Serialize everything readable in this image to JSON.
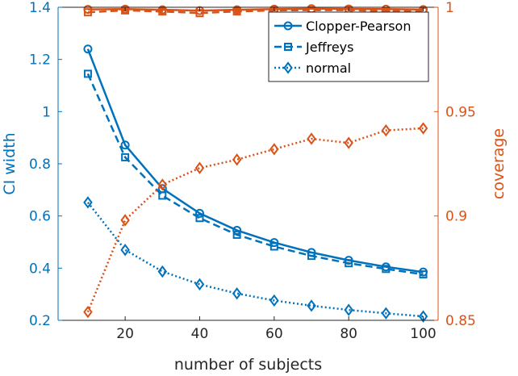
{
  "colors": {
    "left_axis": "#0072BD",
    "right_axis": "#D95319",
    "frame": "#262626",
    "background": "#ffffff"
  },
  "chart_data": {
    "type": "line",
    "xlabel": "number of subjects",
    "ylabel_left": "CI width",
    "ylabel_right": "coverage",
    "xlim": [
      2,
      104
    ],
    "ylim_left": [
      0.2,
      1.4
    ],
    "ylim_right": [
      0.85,
      1.0
    ],
    "x_ticks": [
      20,
      40,
      60,
      80,
      100
    ],
    "y_left_ticks": [
      0.2,
      0.4,
      0.6,
      0.8,
      1.0,
      1.2,
      1.4
    ],
    "y_left_tick_labels": [
      "0.2",
      "0.4",
      "0.6",
      "0.8",
      "1",
      "1.2",
      "1.4"
    ],
    "y_right_ticks": [
      0.85,
      0.9,
      0.95,
      1.0
    ],
    "y_right_tick_labels": [
      "0.85",
      "0.9",
      "0.95",
      "1"
    ],
    "grid": false,
    "legend_position": "top-right",
    "x": [
      10,
      20,
      30,
      40,
      50,
      60,
      70,
      80,
      90,
      100
    ],
    "series": [
      {
        "name": "Clopper-Pearson",
        "axis": "left",
        "line": "solid",
        "marker": "circle",
        "values": [
          1.24,
          0.872,
          0.705,
          0.61,
          0.545,
          0.498,
          0.46,
          0.43,
          0.405,
          0.385
        ]
      },
      {
        "name": "Jeffreys",
        "axis": "left",
        "line": "dashed",
        "marker": "square",
        "values": [
          1.145,
          0.825,
          0.678,
          0.592,
          0.528,
          0.483,
          0.447,
          0.419,
          0.397,
          0.376
        ]
      },
      {
        "name": "normal",
        "axis": "left",
        "line": "dotted",
        "marker": "diamond",
        "values": [
          0.652,
          0.47,
          0.387,
          0.338,
          0.303,
          0.276,
          0.256,
          0.24,
          0.227,
          0.215
        ]
      },
      {
        "axis": "right",
        "line": "solid",
        "marker": "circle",
        "values": [
          0.999,
          0.9991,
          0.9988,
          0.9984,
          0.9988,
          0.9991,
          0.9993,
          0.9992,
          0.9991,
          0.9989
        ]
      },
      {
        "axis": "right",
        "line": "dashed",
        "marker": "square",
        "values": [
          0.9976,
          0.9985,
          0.998,
          0.9972,
          0.998,
          0.9985,
          0.9986,
          0.9986,
          0.9982,
          0.9981
        ]
      },
      {
        "axis": "right",
        "line": "dotted",
        "marker": "diamond",
        "values": [
          0.854,
          0.898,
          0.915,
          0.923,
          0.927,
          0.932,
          0.937,
          0.935,
          0.941,
          0.942
        ]
      }
    ]
  }
}
